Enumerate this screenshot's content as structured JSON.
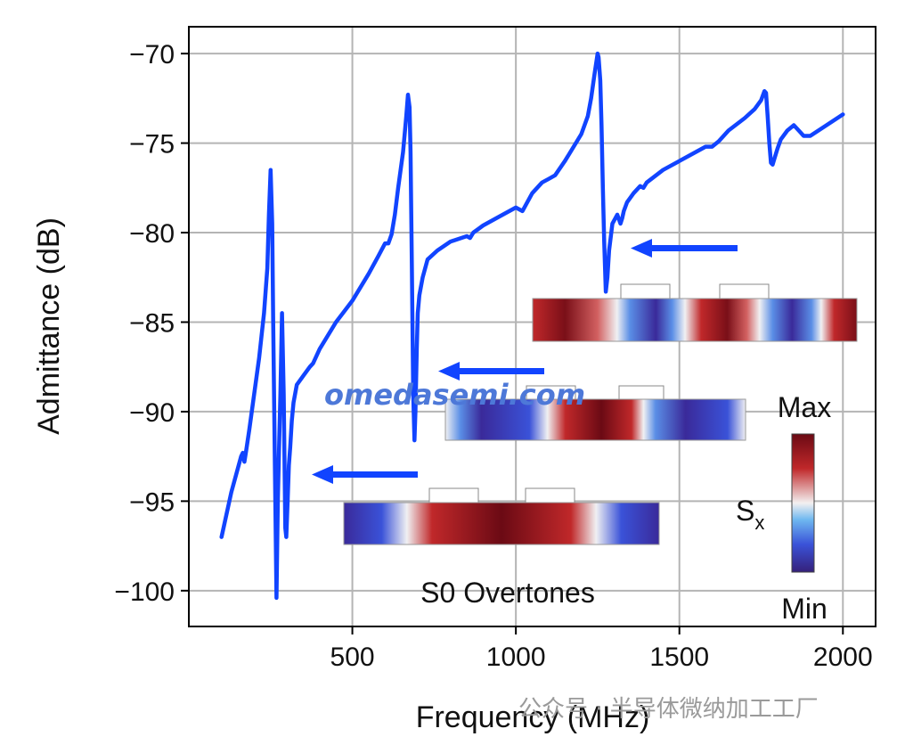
{
  "chart_data": {
    "type": "line",
    "title": "",
    "xlabel": "Frequency (MHz)",
    "ylabel": "Admittance (dB)",
    "xlim": [
      0,
      2100
    ],
    "ylim": [
      -102,
      -68.5
    ],
    "xticks": [
      500,
      1000,
      1500,
      2000
    ],
    "yticks": [
      -70,
      -75,
      -80,
      -85,
      -90,
      -95,
      -100
    ],
    "xtick_labels": [
      "500",
      "1000",
      "1500",
      "2000"
    ],
    "ytick_labels": [
      "−70",
      "−75",
      "−80",
      "−85",
      "−90",
      "−95",
      "−100"
    ],
    "grid": true,
    "line_color": "#1144ff",
    "series": [
      {
        "name": "Admittance",
        "x": [
          100,
          130,
          160,
          165,
          170,
          175,
          185,
          200,
          215,
          230,
          240,
          245,
          250,
          255,
          258,
          263,
          268,
          272,
          276,
          280,
          285,
          290,
          295,
          298,
          302,
          306,
          310,
          315,
          320,
          330,
          350,
          370,
          380,
          400,
          450,
          500,
          550,
          580,
          600,
          610,
          620,
          630,
          640,
          655,
          665,
          670,
          675,
          678,
          682,
          686,
          690,
          693,
          697,
          700,
          705,
          715,
          730,
          760,
          800,
          850,
          860,
          870,
          900,
          950,
          1000,
          1020,
          1050,
          1080,
          1100,
          1120,
          1150,
          1200,
          1220,
          1230,
          1240,
          1250,
          1253,
          1258,
          1262,
          1266,
          1270,
          1275,
          1280,
          1285,
          1295,
          1310,
          1320,
          1325,
          1330,
          1340,
          1360,
          1380,
          1390,
          1400,
          1450,
          1500,
          1550,
          1580,
          1600,
          1620,
          1650,
          1700,
          1730,
          1750,
          1760,
          1765,
          1770,
          1775,
          1780,
          1785,
          1790,
          1800,
          1810,
          1830,
          1850,
          1870,
          1880,
          1900,
          1950,
          2000
        ],
        "y": [
          -97,
          -94.5,
          -92.5,
          -92.3,
          -92.8,
          -92.2,
          -91,
          -89,
          -87,
          -84.5,
          -82,
          -79,
          -76.5,
          -79.5,
          -85,
          -93,
          -100.4,
          -95,
          -92,
          -89,
          -84.5,
          -89,
          -96.5,
          -97,
          -95,
          -93,
          -92,
          -90.5,
          -89.5,
          -88.5,
          -88,
          -87.5,
          -87.3,
          -86.5,
          -85,
          -83.8,
          -82.3,
          -81.3,
          -80.6,
          -80.6,
          -80.1,
          -79,
          -77.5,
          -75.5,
          -73.5,
          -72.3,
          -73,
          -75.5,
          -82,
          -89,
          -91.6,
          -90,
          -86.5,
          -84.5,
          -83.5,
          -82.5,
          -81.5,
          -81,
          -80.5,
          -80.2,
          -80.3,
          -80,
          -79.6,
          -79.1,
          -78.6,
          -78.8,
          -77.8,
          -77.2,
          -77,
          -76.8,
          -76,
          -74.5,
          -73.5,
          -72.5,
          -71.2,
          -70,
          -70.2,
          -71.5,
          -74,
          -77.5,
          -80.5,
          -83.3,
          -82.5,
          -81,
          -79.5,
          -79,
          -79.5,
          -79.2,
          -78.8,
          -78.3,
          -77.8,
          -77.4,
          -77.5,
          -77.2,
          -76.5,
          -76,
          -75.5,
          -75.2,
          -75.2,
          -74.9,
          -74.3,
          -73.6,
          -73.1,
          -72.6,
          -72.1,
          -72.2,
          -73.5,
          -75,
          -76.1,
          -76.2,
          -75.9,
          -75.3,
          -74.8,
          -74.3,
          -74,
          -74.4,
          -74.6,
          -74.6,
          -74,
          -73.4
        ]
      }
    ],
    "annotations": [
      {
        "text": "S0 Overtones"
      },
      {
        "text": "Max"
      },
      {
        "text": "S",
        "subscript": "x"
      },
      {
        "text": "Min"
      }
    ]
  },
  "watermark": {
    "text": "omedasemi.com",
    "wechat": "公众号 · 半导体微纳加工工厂"
  }
}
